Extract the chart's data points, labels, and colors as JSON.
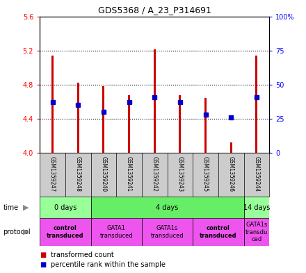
{
  "title": "GDS5368 / A_23_P314691",
  "samples": [
    "GSM1359247",
    "GSM1359248",
    "GSM1359240",
    "GSM1359241",
    "GSM1359242",
    "GSM1359243",
    "GSM1359245",
    "GSM1359246",
    "GSM1359244"
  ],
  "transformed_count": [
    5.14,
    4.82,
    4.78,
    4.68,
    5.21,
    4.68,
    4.64,
    4.12,
    5.14
  ],
  "percentile_rank": [
    37,
    35,
    30,
    37,
    41,
    37,
    28,
    26,
    41
  ],
  "ylim_left": [
    4.0,
    5.6
  ],
  "ylim_right": [
    0,
    100
  ],
  "yticks_left": [
    4.0,
    4.4,
    4.8,
    5.2,
    5.6
  ],
  "yticks_right": [
    0,
    25,
    50,
    75,
    100
  ],
  "ytick_labels_right": [
    "0",
    "25",
    "50",
    "75",
    "100%"
  ],
  "bar_color": "#cc0000",
  "dot_color": "#0000cc",
  "bar_width": 0.08,
  "time_groups": [
    {
      "label": "0 days",
      "start": 0,
      "end": 2,
      "color": "#99ff99"
    },
    {
      "label": "4 days",
      "start": 2,
      "end": 8,
      "color": "#66ee66"
    },
    {
      "label": "14 days",
      "start": 8,
      "end": 9,
      "color": "#99ff99"
    }
  ],
  "protocol_groups": [
    {
      "label": "control\ntransduced",
      "start": 0,
      "end": 2,
      "color": "#ee55ee",
      "bold": true
    },
    {
      "label": "GATA1\ntransduced",
      "start": 2,
      "end": 4,
      "color": "#ee55ee",
      "bold": false
    },
    {
      "label": "GATA1s\ntransduced",
      "start": 4,
      "end": 6,
      "color": "#ee55ee",
      "bold": false
    },
    {
      "label": "control\ntransduced",
      "start": 6,
      "end": 8,
      "color": "#ee55ee",
      "bold": true
    },
    {
      "label": "GATA1s\ntransdu\nced",
      "start": 8,
      "end": 9,
      "color": "#ee55ee",
      "bold": false
    }
  ],
  "sample_bg_color": "#cccccc",
  "dot_size": 4
}
